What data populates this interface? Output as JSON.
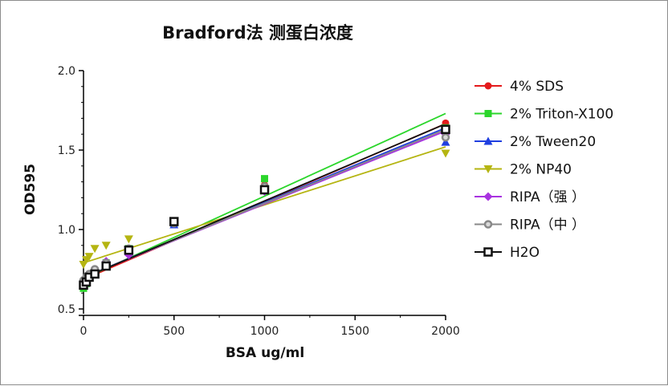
{
  "chart_data": {
    "type": "scatter",
    "title": "Bradford法 测蛋白浓度",
    "xlabel": "BSA ug/ml",
    "ylabel": "OD595",
    "xlim": [
      0,
      2000
    ],
    "ylim": [
      0.5,
      2.0
    ],
    "xticks": [
      "0",
      "500",
      "1000",
      "1500",
      "2000"
    ],
    "yticks": [
      "0.5",
      "1.0",
      "1.5",
      "2.0"
    ],
    "legend_position": "right",
    "grid": false,
    "series": [
      {
        "name": "4% SDS",
        "color": "#e41a1c",
        "marker": "circle",
        "x": [
          0,
          15.6,
          31.25,
          62.5,
          125,
          250,
          500,
          1000,
          2000
        ],
        "y": [
          0.67,
          0.68,
          0.7,
          0.72,
          0.78,
          0.87,
          1.04,
          1.28,
          1.67
        ],
        "fit": [
          0.686,
          0.00049
        ]
      },
      {
        "name": "2% Triton-X100",
        "color": "#2bd62b",
        "marker": "square",
        "x": [
          0,
          15.6,
          31.25,
          62.5,
          125,
          250,
          500,
          1000,
          2000
        ],
        "y": [
          0.63,
          0.66,
          0.7,
          0.73,
          0.79,
          0.88,
          1.04,
          1.32,
          1.64
        ],
        "fit": [
          0.69,
          0.00052
        ]
      },
      {
        "name": "2% Tween20",
        "color": "#1f3fe0",
        "marker": "triangle-up",
        "x": [
          0,
          15.6,
          31.25,
          62.5,
          125,
          250,
          500,
          1000,
          2000
        ],
        "y": [
          0.66,
          0.68,
          0.7,
          0.72,
          0.78,
          0.86,
          1.03,
          1.27,
          1.55
        ],
        "fit": [
          0.7,
          0.00047
        ]
      },
      {
        "name": "2% NP40",
        "color": "#b5b512",
        "marker": "triangle-down",
        "x": [
          0,
          15.6,
          31.25,
          62.5,
          125,
          250,
          500,
          1000,
          2000
        ],
        "y": [
          0.78,
          0.81,
          0.83,
          0.88,
          0.9,
          0.94,
          1.04,
          1.25,
          1.48
        ],
        "fit": [
          0.79,
          0.000365
        ]
      },
      {
        "name": "RIPA（强 ）",
        "color": "#a832e0",
        "marker": "diamond",
        "x": [
          0,
          15.6,
          31.25,
          62.5,
          125,
          250,
          500,
          1000,
          2000
        ],
        "y": [
          0.66,
          0.68,
          0.7,
          0.74,
          0.8,
          0.84,
          1.04,
          1.24,
          1.6
        ],
        "fit": [
          0.7,
          0.00046
        ]
      },
      {
        "name": "RIPA（中 ）",
        "color": "#888888",
        "marker": "circle-open",
        "x": [
          0,
          15.6,
          31.25,
          62.5,
          125,
          250,
          500,
          1000,
          2000
        ],
        "y": [
          0.68,
          0.7,
          0.72,
          0.75,
          0.79,
          0.88,
          1.04,
          1.27,
          1.58
        ],
        "fit": [
          0.7,
          0.000465
        ]
      },
      {
        "name": "H2O",
        "color": "#111111",
        "marker": "square-open",
        "x": [
          0,
          15.6,
          31.25,
          62.5,
          125,
          250,
          500,
          1000,
          2000
        ],
        "y": [
          0.65,
          0.67,
          0.7,
          0.72,
          0.77,
          0.87,
          1.05,
          1.25,
          1.63
        ],
        "fit": [
          0.695,
          0.000485
        ]
      }
    ]
  }
}
